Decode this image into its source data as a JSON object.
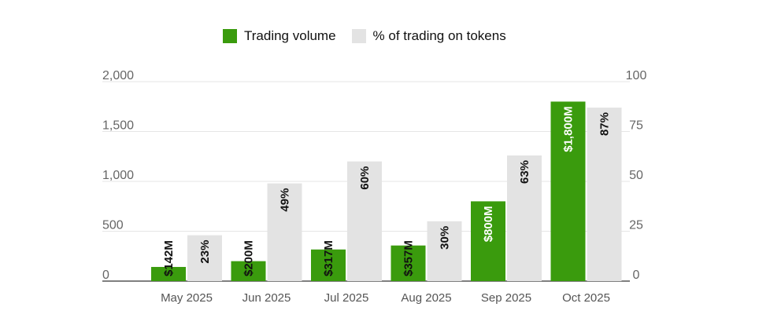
{
  "chart_data": {
    "type": "bar",
    "categories": [
      "May 2025",
      "Jun 2025",
      "Jul 2025",
      "Aug 2025",
      "Sep 2025",
      "Oct 2025"
    ],
    "series": [
      {
        "name": "Trading volume",
        "axis": "left",
        "color": "#3a9b0d",
        "values": [
          142,
          200,
          317,
          357,
          800,
          1800
        ],
        "labels": [
          "$142M",
          "$200M",
          "$317M",
          "$357M",
          "$800M",
          "$1,800M"
        ]
      },
      {
        "name": "% of trading on tokens",
        "axis": "right",
        "color": "#e3e3e3",
        "values": [
          23,
          49,
          60,
          30,
          63,
          87
        ],
        "labels": [
          "23%",
          "49%",
          "60%",
          "30%",
          "63%",
          "87%"
        ]
      }
    ],
    "left_axis": {
      "ylim": [
        0,
        2000
      ],
      "ticks": [
        0,
        500,
        1000,
        1500,
        2000
      ],
      "tick_labels": [
        "0",
        "500",
        "1,000",
        "1,500",
        "2,000"
      ]
    },
    "right_axis": {
      "ylim": [
        0,
        100
      ],
      "ticks": [
        0,
        25,
        50,
        75,
        100
      ],
      "tick_labels": [
        "0",
        "25",
        "50",
        "75",
        "100"
      ]
    },
    "legend_position": "top-center",
    "grid": true
  }
}
